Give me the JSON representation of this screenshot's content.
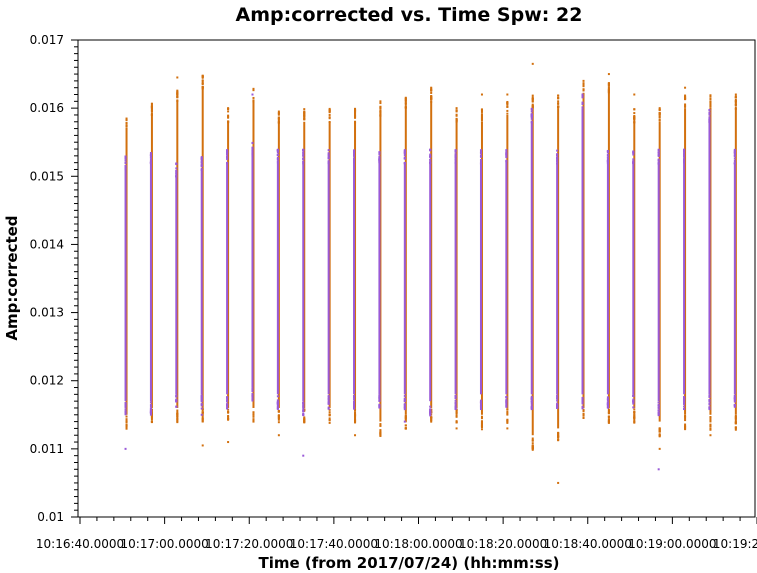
{
  "chart_data": {
    "type": "scatter",
    "title": "Amp:corrected vs. Time Spw: 22",
    "xlabel": "Time (from 2017/07/24) (hh:mm:ss)",
    "ylabel": "Amp:corrected",
    "x_range": [
      "10:16:40.0000",
      "10:19:20.0000"
    ],
    "ylim": [
      0.01,
      0.017
    ],
    "x_ticks": [
      "10:16:40.0000",
      "10:17:00.0000",
      "10:17:20.0000",
      "10:17:40.0000",
      "10:18:00.0000",
      "10:18:20.0000",
      "10:18:40.0000",
      "10:19:00.0000",
      "10:19:20.0000"
    ],
    "y_ticks": [
      "0.01",
      "0.011",
      "0.012",
      "0.013",
      "0.014",
      "0.015",
      "0.016",
      "0.017"
    ],
    "grid": false,
    "colors": {
      "orange": "#d2700e",
      "purple": "#9a5ad8"
    },
    "series": [
      {
        "color": "#d2700e",
        "strips": [
          {
            "x": "10:16:51",
            "low": 0.0115,
            "high": 0.0157,
            "outliers": [
              0.0114
            ]
          },
          {
            "x": "10:16:57",
            "low": 0.0116,
            "high": 0.0159,
            "outliers": [
              0.016
            ]
          },
          {
            "x": "10:17:03",
            "low": 0.0116,
            "high": 0.0161,
            "outliers": [
              0.01645
            ]
          },
          {
            "x": "10:17:09",
            "low": 0.0116,
            "high": 0.0163,
            "outliers": [
              0.01105,
              0.01635
            ]
          },
          {
            "x": "10:17:15",
            "low": 0.0116,
            "high": 0.0158,
            "outliers": [
              0.0111,
              0.016
            ]
          },
          {
            "x": "10:17:21",
            "low": 0.0116,
            "high": 0.0161,
            "outliers": [
              0.0114
            ]
          },
          {
            "x": "10:17:27",
            "low": 0.0116,
            "high": 0.0158,
            "outliers": [
              0.0112
            ]
          },
          {
            "x": "10:17:33",
            "low": 0.0116,
            "high": 0.0158,
            "outliers": [
              0.0159
            ]
          },
          {
            "x": "10:17:39",
            "low": 0.0116,
            "high": 0.0158,
            "outliers": [
              0.0159
            ]
          },
          {
            "x": "10:17:45",
            "low": 0.0116,
            "high": 0.0158,
            "outliers": [
              0.0112,
              0.0114
            ]
          },
          {
            "x": "10:17:51",
            "low": 0.0114,
            "high": 0.0159,
            "outliers": [
              0.0161
            ]
          },
          {
            "x": "10:17:57",
            "low": 0.0115,
            "high": 0.016,
            "outliers": [
              0.0113
            ]
          },
          {
            "x": "10:18:03",
            "low": 0.0116,
            "high": 0.0161,
            "outliers": [
              0.0163
            ]
          },
          {
            "x": "10:18:09",
            "low": 0.0116,
            "high": 0.0158,
            "outliers": [
              0.016,
              0.0113
            ]
          },
          {
            "x": "10:18:15",
            "low": 0.0115,
            "high": 0.0158,
            "outliers": [
              0.0162
            ]
          },
          {
            "x": "10:18:21",
            "low": 0.0116,
            "high": 0.0159,
            "outliers": [
              0.0162,
              0.0113
            ]
          },
          {
            "x": "10:18:27",
            "low": 0.0112,
            "high": 0.016,
            "outliers": [
              0.01665,
              0.011
            ]
          },
          {
            "x": "10:18:33",
            "low": 0.0113,
            "high": 0.016,
            "outliers": [
              0.0105,
              0.0161
            ]
          },
          {
            "x": "10:18:39",
            "low": 0.0116,
            "high": 0.0162,
            "outliers": [
              0.0164
            ]
          },
          {
            "x": "10:18:45",
            "low": 0.0116,
            "high": 0.0162,
            "outliers": [
              0.0165
            ]
          },
          {
            "x": "10:18:51",
            "low": 0.0116,
            "high": 0.0158,
            "outliers": [
              0.0162
            ]
          },
          {
            "x": "10:18:57",
            "low": 0.0114,
            "high": 0.0158,
            "outliers": [
              0.016,
              0.011,
              0.0112
            ]
          },
          {
            "x": "10:19:03",
            "low": 0.0115,
            "high": 0.016,
            "outliers": [
              0.0163
            ]
          },
          {
            "x": "10:19:09",
            "low": 0.0115,
            "high": 0.016,
            "outliers": [
              0.0161,
              0.0112
            ]
          },
          {
            "x": "10:19:15",
            "low": 0.0115,
            "high": 0.016,
            "outliers": [
              0.0162,
              0.0113
            ]
          }
        ]
      },
      {
        "color": "#9a5ad8",
        "strips": [
          {
            "x": "10:16:51",
            "low": 0.0117,
            "high": 0.0151,
            "outliers": [
              0.011
            ]
          },
          {
            "x": "10:16:57",
            "low": 0.0117,
            "high": 0.0152,
            "outliers": []
          },
          {
            "x": "10:17:03",
            "low": 0.0118,
            "high": 0.015,
            "outliers": []
          },
          {
            "x": "10:17:09",
            "low": 0.0118,
            "high": 0.0151,
            "outliers": [
              0.0115
            ]
          },
          {
            "x": "10:17:15",
            "low": 0.0118,
            "high": 0.0152,
            "outliers": []
          },
          {
            "x": "10:17:21",
            "low": 0.0119,
            "high": 0.0153,
            "outliers": [
              0.0162
            ]
          },
          {
            "x": "10:17:27",
            "low": 0.0118,
            "high": 0.0152,
            "outliers": []
          },
          {
            "x": "10:17:33",
            "low": 0.0117,
            "high": 0.0152,
            "outliers": [
              0.0109
            ]
          },
          {
            "x": "10:17:39",
            "low": 0.0118,
            "high": 0.0152,
            "outliers": []
          },
          {
            "x": "10:17:45",
            "low": 0.0118,
            "high": 0.0152,
            "outliers": []
          },
          {
            "x": "10:17:51",
            "low": 0.0118,
            "high": 0.0152,
            "outliers": []
          },
          {
            "x": "10:17:57",
            "low": 0.0118,
            "high": 0.0152,
            "outliers": [
              0.0114
            ]
          },
          {
            "x": "10:18:03",
            "low": 0.0117,
            "high": 0.0152,
            "outliers": []
          },
          {
            "x": "10:18:09",
            "low": 0.0118,
            "high": 0.0152,
            "outliers": []
          },
          {
            "x": "10:18:15",
            "low": 0.0118,
            "high": 0.0152,
            "outliers": []
          },
          {
            "x": "10:18:21",
            "low": 0.0118,
            "high": 0.0152,
            "outliers": []
          },
          {
            "x": "10:18:27",
            "low": 0.0118,
            "high": 0.0158,
            "outliers": [
              0.01595
            ]
          },
          {
            "x": "10:18:33",
            "low": 0.0118,
            "high": 0.0152,
            "outliers": []
          },
          {
            "x": "10:18:39",
            "low": 0.0118,
            "high": 0.016,
            "outliers": [
              0.0162
            ]
          },
          {
            "x": "10:18:45",
            "low": 0.0118,
            "high": 0.0152,
            "outliers": []
          },
          {
            "x": "10:18:51",
            "low": 0.0118,
            "high": 0.0152,
            "outliers": []
          },
          {
            "x": "10:18:57",
            "low": 0.0117,
            "high": 0.0152,
            "outliers": [
              0.0107
            ]
          },
          {
            "x": "10:19:03",
            "low": 0.0118,
            "high": 0.0152,
            "outliers": []
          },
          {
            "x": "10:19:09",
            "low": 0.0118,
            "high": 0.0158,
            "outliers": [
              0.0158
            ]
          },
          {
            "x": "10:19:15",
            "low": 0.0118,
            "high": 0.0152,
            "outliers": []
          }
        ]
      }
    ]
  }
}
